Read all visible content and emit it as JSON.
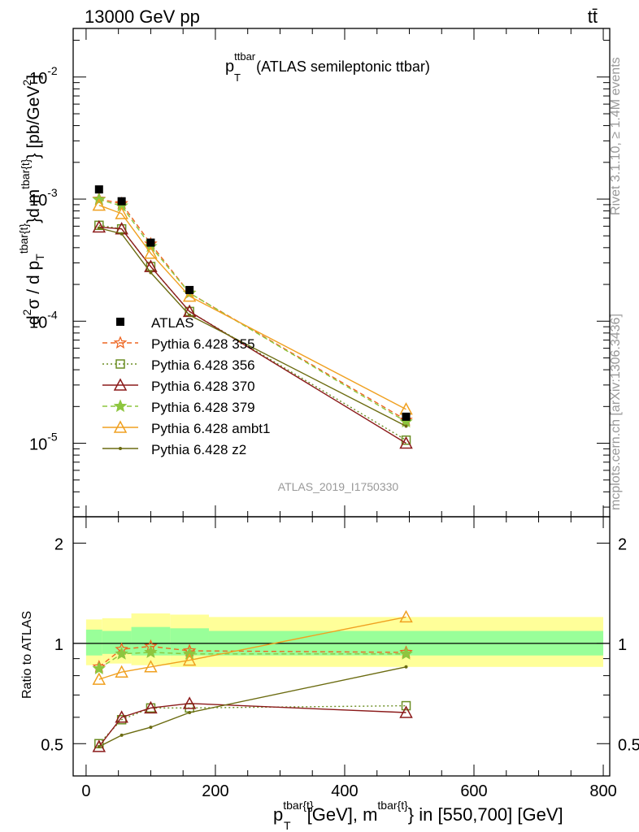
{
  "header": {
    "energy": "13000 GeV pp",
    "process": "tt̄"
  },
  "watermarks": {
    "rivet": "Rivet 3.1.10, ≥ 1.4M events",
    "site": "mcplots.cern.ch [arXiv:1306.3436]",
    "analysis": "ATLAS_2019_I1750330"
  },
  "chart_data": {
    "type": "scatter",
    "title": {
      "base": "p",
      "sub": "T",
      "sup": "ttbar",
      "rest": " (ATLAS semileptonic ttbar)"
    },
    "xlabel": {
      "base": "p",
      "sub": "T",
      "sup": "tbar{t}",
      "mid": "[GeV], m",
      "sup2": "tbar{t}",
      "rest": "} in [550,700] [GeV]"
    },
    "ylabel": {
      "pre": "d",
      "sup1": "2",
      "mid1": "σ / d p",
      "sub": "T",
      "sup2": "tbar{t}",
      "mid2": "}d m",
      "sup3": "tbar{t}",
      "mid3": "} [pb/GeV",
      "sup4": "2",
      "end": "]"
    },
    "ratio_ylabel": "Ratio to ATLAS",
    "x": [
      20,
      55,
      100,
      160,
      495
    ],
    "xlim": [
      -20,
      810
    ],
    "xticks": [
      0,
      200,
      400,
      600,
      800
    ],
    "ylim": [
      2.5e-06,
      0.025
    ],
    "yscale": "log",
    "yticks": [
      {
        "base": "10",
        "exp": "-2",
        "value": 0.01
      },
      {
        "base": "10",
        "exp": "-3",
        "value": 0.001
      },
      {
        "base": "10",
        "exp": "-4",
        "value": 0.0001
      },
      {
        "base": "10",
        "exp": "-5",
        "value": 1e-05
      }
    ],
    "ratio_ylim": [
      0.4,
      2.4
    ],
    "ratio_yscale": "log",
    "ratio_yticks": [
      "0.5",
      "1",
      "2"
    ],
    "bands": [
      {
        "x0": 0,
        "x1": 25,
        "inner": [
          0.92,
          1.1
        ],
        "outer": [
          0.86,
          1.18
        ]
      },
      {
        "x0": 25,
        "x1": 70,
        "inner": [
          0.93,
          1.09
        ],
        "outer": [
          0.87,
          1.19
        ]
      },
      {
        "x0": 70,
        "x1": 130,
        "inner": [
          0.92,
          1.12
        ],
        "outer": [
          0.86,
          1.23
        ]
      },
      {
        "x0": 130,
        "x1": 190,
        "inner": [
          0.92,
          1.11
        ],
        "outer": [
          0.85,
          1.22
        ]
      },
      {
        "x0": 190,
        "x1": 800,
        "inner": [
          0.92,
          1.09
        ],
        "outer": [
          0.85,
          1.2
        ]
      }
    ],
    "reference": {
      "name": "ATLAS",
      "values": [
        0.0012,
        0.00096,
        0.00044,
        0.00018,
        1.65e-05
      ],
      "color": "#000000"
    },
    "series": [
      {
        "name": "Pythia 6.428 355",
        "color": "#ee6622",
        "dash": "6,4",
        "marker": "star",
        "values": [
          0.001,
          0.00092,
          0.00043,
          0.00017,
          1.55e-05
        ],
        "ratio": [
          0.85,
          0.96,
          0.98,
          0.95,
          0.94
        ]
      },
      {
        "name": "Pythia 6.428 356",
        "color": "#6b8e23",
        "dash": "2,3",
        "marker": "square",
        "values": [
          0.00061,
          0.00057,
          0.00028,
          0.00012,
          1.06e-05
        ],
        "ratio": [
          0.5,
          0.59,
          0.64,
          0.64,
          0.65
        ]
      },
      {
        "name": "Pythia 6.428 370",
        "color": "#8b1a1a",
        "dash": "",
        "marker": "triangle",
        "values": [
          0.00059,
          0.00057,
          0.00028,
          0.00012,
          1e-05
        ],
        "ratio": [
          0.49,
          0.6,
          0.64,
          0.66,
          0.62
        ]
      },
      {
        "name": "Pythia 6.428 379",
        "color": "#8dc63f",
        "dash": "6,4",
        "marker": "star",
        "values": [
          0.00099,
          0.00088,
          0.00041,
          0.00017,
          1.5e-05
        ],
        "ratio": [
          0.84,
          0.93,
          0.94,
          0.93,
          0.93
        ]
      },
      {
        "name": "Pythia 6.428 ambt1",
        "color": "#f0a020",
        "dash": "",
        "marker": "triangle",
        "values": [
          0.00089,
          0.00076,
          0.00036,
          0.00016,
          1.9e-05
        ],
        "ratio": [
          0.78,
          0.82,
          0.85,
          0.89,
          1.2
        ]
      },
      {
        "name": "Pythia 6.428 z2",
        "color": "#6b6b10",
        "dash": "",
        "marker": "dot",
        "values": [
          0.00058,
          0.00052,
          0.00025,
          0.000112,
          1.38e-05
        ],
        "ratio": [
          0.49,
          0.53,
          0.56,
          0.62,
          0.85
        ]
      }
    ]
  }
}
